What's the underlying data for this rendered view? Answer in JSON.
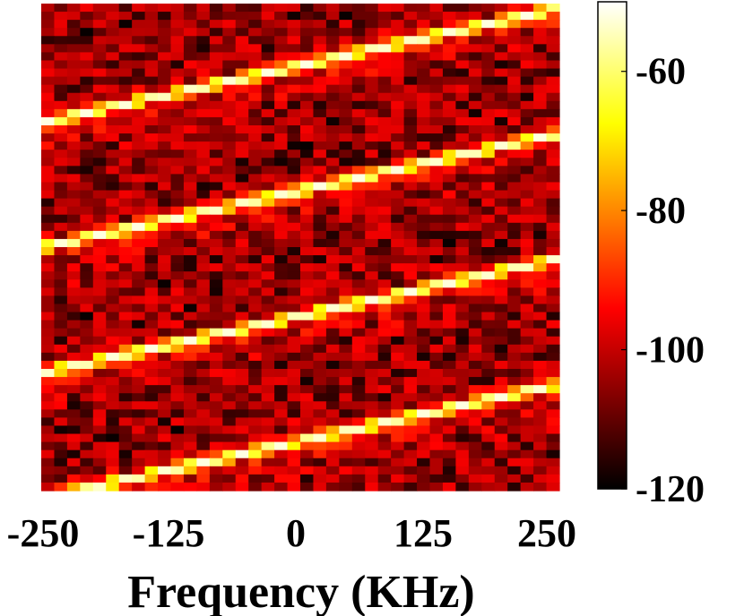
{
  "chart_data": {
    "type": "heatmap",
    "title": "",
    "xlabel": "Frequency (KHz)",
    "ylabel": "",
    "xlim": [
      -250,
      250
    ],
    "x_ticks": [
      "-250",
      "-125",
      "0",
      "125",
      "250"
    ],
    "colorbar": {
      "colormap": "hot",
      "range": [
        -120,
        -50
      ],
      "ticks": [
        "-60",
        "-80",
        "-100",
        "-120"
      ],
      "tick_values": [
        -60,
        -80,
        -100,
        -120
      ]
    },
    "grid": false,
    "legend": "none",
    "traces": {
      "description": "four parallel diagonal chirp lines rising from left to right",
      "count": 4,
      "peak_level": -52,
      "background_level_range": [
        -120,
        -95
      ]
    }
  }
}
